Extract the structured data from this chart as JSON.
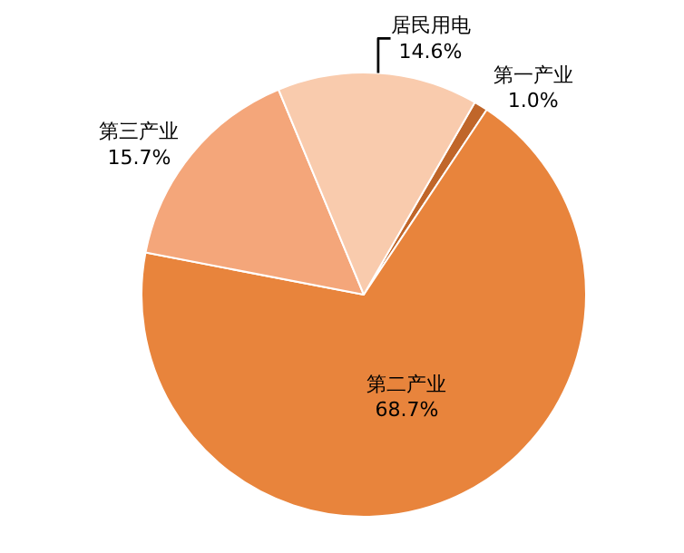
{
  "chart_data": {
    "type": "pie",
    "categories": [
      "第一产业",
      "第二产业",
      "第三产业",
      "居民用电"
    ],
    "values": [
      1.0,
      68.7,
      15.7,
      14.6
    ],
    "value_labels": [
      "1.0%",
      "68.7%",
      "15.7%",
      "14.6%"
    ],
    "colors": [
      "#c0662a",
      "#e8843c",
      "#f4a67a",
      "#f9cbad"
    ],
    "legend": false
  }
}
